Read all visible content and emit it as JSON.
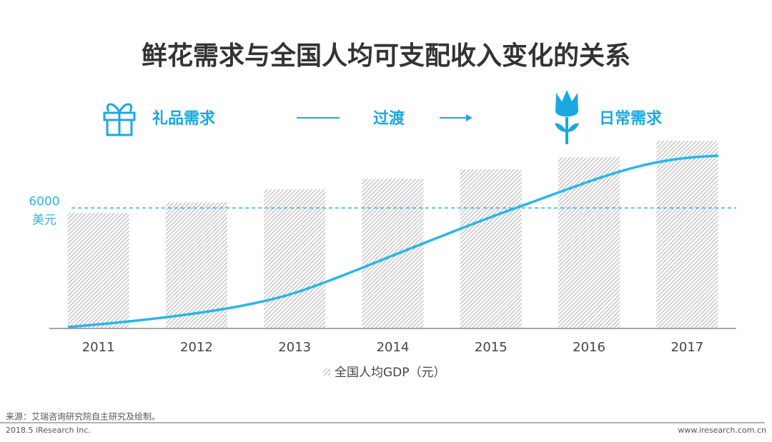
{
  "chart_data": {
    "type": "bar",
    "title": "鲜花需求与全国人均可支配收入变化的关系",
    "stages": [
      "礼品需求",
      "过渡",
      "日常需求"
    ],
    "categories": [
      "2011",
      "2012",
      "2013",
      "2014",
      "2015",
      "2016",
      "2017"
    ],
    "series": [
      {
        "name": "全国人均GDP（元）",
        "color": "#8a8a8a",
        "values": [
          5750,
          6280,
          6920,
          7450,
          7920,
          8520,
          9340
        ]
      }
    ],
    "ylim": [
      0,
      9600
    ],
    "reference_line": {
      "value": 6000,
      "unit": "美元",
      "color": "#29b6e8"
    },
    "source": "来源：艾瑞咨询研究院自主研究及绘制。",
    "copyright": "2018.5 iResearch Inc.",
    "website": "www.iresearch.com.cn"
  }
}
